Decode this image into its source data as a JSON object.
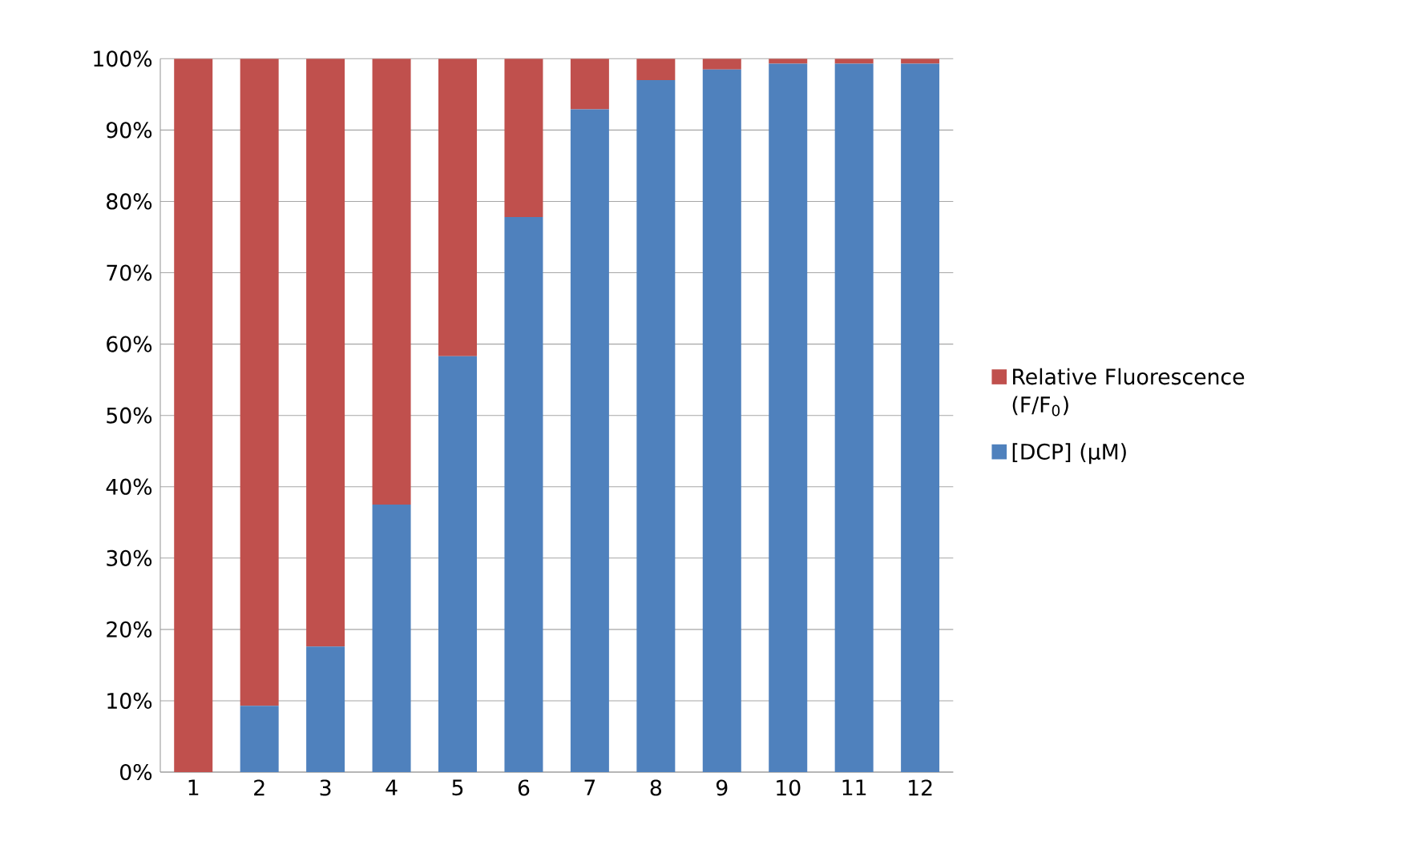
{
  "chart_data": {
    "type": "bar",
    "stacked": true,
    "categories": [
      "1",
      "2",
      "3",
      "4",
      "5",
      "6",
      "7",
      "8",
      "9",
      "10",
      "11",
      "12"
    ],
    "series": [
      {
        "name": "[DCP] (µM)",
        "color": "#4f81bd",
        "values": [
          0,
          9.3,
          17.6,
          37.5,
          58.3,
          77.8,
          92.9,
          97,
          98.5,
          99.3,
          99.3,
          99.3
        ]
      },
      {
        "name": "Relative Fluorescence (F/F$_{0}$)",
        "color": "#c0504d",
        "values": [
          100,
          90.7,
          82.4,
          62.5,
          41.7,
          22.2,
          7.1,
          3,
          1.5,
          0.7,
          0.7,
          0.7
        ]
      }
    ],
    "ylim": [
      0,
      100
    ],
    "yticks": [
      {
        "value": 0,
        "label": "0%"
      },
      {
        "value": 10,
        "label": "10%"
      },
      {
        "value": 20,
        "label": "20%"
      },
      {
        "value": 30,
        "label": "30%"
      },
      {
        "value": 40,
        "label": "40%"
      },
      {
        "value": 50,
        "label": "50%"
      },
      {
        "value": 60,
        "label": "60%"
      },
      {
        "value": 70,
        "label": "70%"
      },
      {
        "value": 80,
        "label": "80%"
      },
      {
        "value": 90,
        "label": "90%"
      },
      {
        "value": 100,
        "label": "100%"
      }
    ],
    "grid": "y",
    "legend": "right"
  }
}
